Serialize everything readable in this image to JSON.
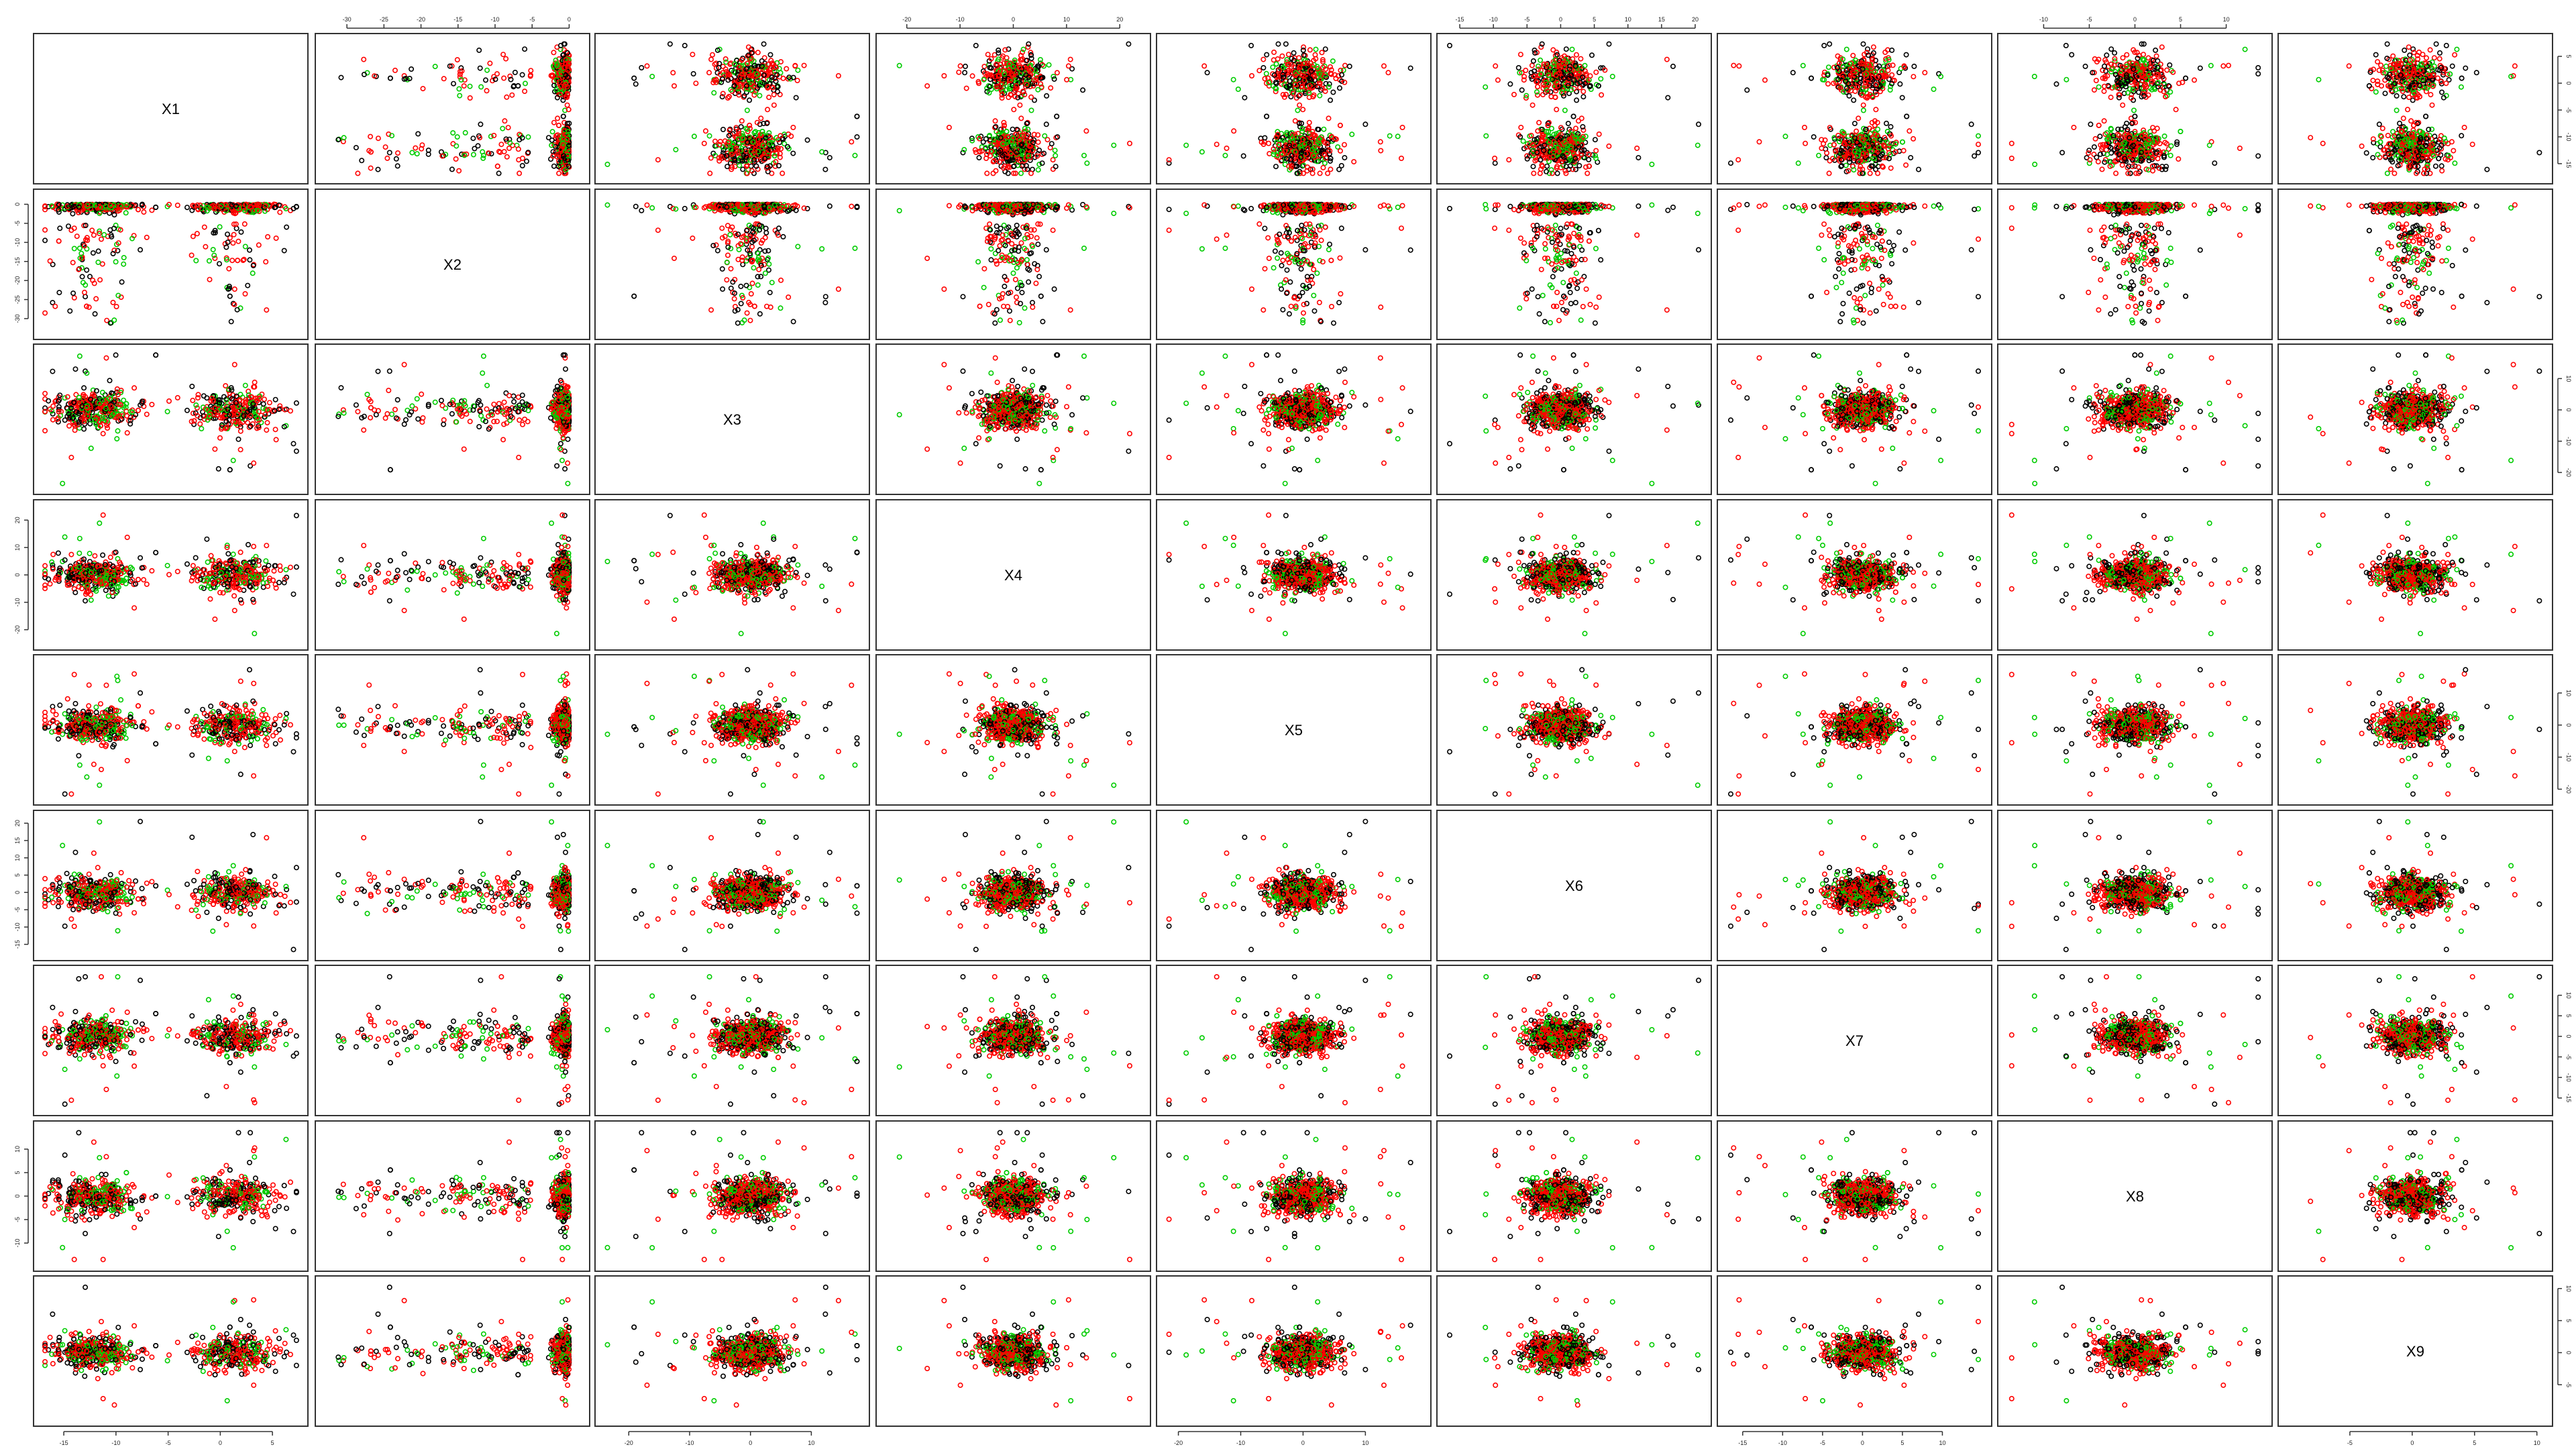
{
  "chart_data": {
    "type": "scatter",
    "layout": "scatterplot-matrix",
    "variables": [
      "X1",
      "X2",
      "X3",
      "X4",
      "X5",
      "X6",
      "X7",
      "X8",
      "X9"
    ],
    "group_colors": [
      "#000000",
      "#ff0000",
      "#00cc00"
    ],
    "point_shape": "open-circle",
    "grid": false,
    "axes": [
      {
        "name": "X1",
        "range": [
          -17,
          7.5
        ],
        "ticks": [
          -15,
          -10,
          -5,
          0,
          5
        ],
        "tick_labels": [
          "-15",
          "-10",
          "-5",
          "0",
          "5"
        ]
      },
      {
        "name": "X2",
        "range": [
          -33,
          1.5
        ],
        "ticks": [
          -30,
          -25,
          -20,
          -15,
          -10,
          -5,
          0
        ],
        "tick_labels": [
          "-30",
          "-25",
          "-20",
          "-15",
          "-10",
          "-5",
          "0"
        ]
      },
      {
        "name": "X3",
        "range": [
          -24,
          18
        ],
        "ticks": [
          -20,
          -10,
          0,
          10
        ],
        "tick_labels": [
          "-20",
          "-10",
          "0",
          "10"
        ]
      },
      {
        "name": "X4",
        "range": [
          -24,
          24
        ],
        "ticks": [
          -20,
          -10,
          0,
          10,
          20
        ],
        "tick_labels": [
          "-20",
          "-10",
          "0",
          "10",
          "20"
        ]
      },
      {
        "name": "X5",
        "range": [
          -22,
          19
        ],
        "ticks": [
          -20,
          -10,
          0,
          10
        ],
        "tick_labels": [
          "-20",
          "-10",
          "0",
          "10"
        ]
      },
      {
        "name": "X6",
        "range": [
          -17,
          21
        ],
        "ticks": [
          -15,
          -10,
          -5,
          0,
          5,
          10,
          15,
          20
        ],
        "tick_labels": [
          "-15",
          "-10",
          "-5",
          "0",
          "5",
          "10",
          "15",
          "20"
        ]
      },
      {
        "name": "X7",
        "range": [
          -17,
          15
        ],
        "ticks": [
          -15,
          -10,
          -5,
          0,
          5,
          10
        ],
        "tick_labels": [
          "-15",
          "-10",
          "-5",
          "0",
          "5",
          "10"
        ]
      },
      {
        "name": "X8",
        "range": [
          -14,
          14
        ],
        "ticks": [
          -10,
          -5,
          0,
          5,
          10
        ],
        "tick_labels": [
          "-10",
          "-5",
          "0",
          "5",
          "10"
        ]
      },
      {
        "name": "X9",
        "range": [
          -10,
          10.5
        ],
        "ticks": [
          -5,
          0,
          5,
          10
        ],
        "tick_labels": [
          "-5",
          "0",
          "5",
          "10"
        ]
      }
    ]
  }
}
